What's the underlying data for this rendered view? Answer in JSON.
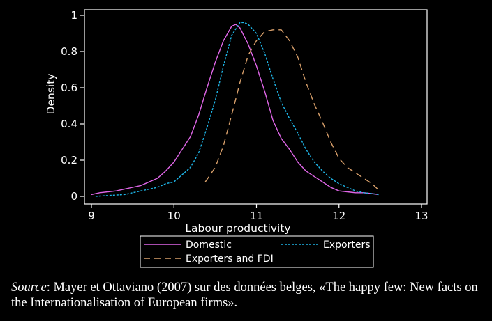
{
  "chart_data": {
    "type": "line",
    "xlabel": "Labour productivity",
    "ylabel": "Density",
    "xlim": [
      9,
      13
    ],
    "ylim": [
      0,
      1
    ],
    "xticks": [
      "9",
      "10",
      "11",
      "12",
      "13"
    ],
    "yticks": [
      "0",
      "0.2",
      "0.4",
      "0.6",
      "0.8",
      "1"
    ],
    "grid": false,
    "legend_position": "bottom",
    "series": [
      {
        "name": "Domestic",
        "color": "#e066e8",
        "dash": "solid",
        "x": [
          9.0,
          9.1,
          9.2,
          9.3,
          9.4,
          9.5,
          9.6,
          9.7,
          9.8,
          9.9,
          10.0,
          10.1,
          10.2,
          10.3,
          10.4,
          10.5,
          10.6,
          10.7,
          10.75,
          10.8,
          10.9,
          11.0,
          11.1,
          11.2,
          11.3,
          11.4,
          11.5,
          11.6,
          11.7,
          11.8,
          11.9,
          12.0,
          12.1,
          12.2,
          12.3,
          12.4,
          12.48
        ],
        "y": [
          0.01,
          0.02,
          0.025,
          0.03,
          0.04,
          0.05,
          0.06,
          0.08,
          0.1,
          0.14,
          0.19,
          0.26,
          0.33,
          0.45,
          0.6,
          0.74,
          0.86,
          0.94,
          0.95,
          0.93,
          0.84,
          0.72,
          0.58,
          0.42,
          0.32,
          0.26,
          0.19,
          0.14,
          0.11,
          0.08,
          0.05,
          0.03,
          0.025,
          0.02,
          0.02,
          0.015,
          0.01
        ]
      },
      {
        "name": "Exporters",
        "color": "#1fb6e8",
        "dash": "short-dash",
        "x": [
          9.05,
          9.2,
          9.4,
          9.6,
          9.8,
          9.9,
          10.0,
          10.1,
          10.2,
          10.3,
          10.4,
          10.5,
          10.6,
          10.7,
          10.8,
          10.85,
          10.9,
          11.0,
          11.1,
          11.2,
          11.3,
          11.4,
          11.5,
          11.6,
          11.7,
          11.8,
          11.9,
          12.0,
          12.1,
          12.2,
          12.3,
          12.4,
          12.48
        ],
        "y": [
          0.0,
          0.005,
          0.01,
          0.03,
          0.05,
          0.07,
          0.08,
          0.12,
          0.16,
          0.24,
          0.38,
          0.53,
          0.72,
          0.89,
          0.96,
          0.96,
          0.95,
          0.9,
          0.79,
          0.65,
          0.52,
          0.43,
          0.35,
          0.26,
          0.19,
          0.14,
          0.1,
          0.07,
          0.05,
          0.03,
          0.02,
          0.015,
          0.01
        ]
      },
      {
        "name": "Exporters and FDI",
        "color": "#d9a06b",
        "dash": "long-dash",
        "x": [
          10.38,
          10.5,
          10.6,
          10.7,
          10.8,
          10.9,
          11.0,
          11.1,
          11.2,
          11.3,
          11.4,
          11.5,
          11.6,
          11.7,
          11.8,
          11.9,
          12.0,
          12.1,
          12.2,
          12.3,
          12.4,
          12.47
        ],
        "y": [
          0.08,
          0.16,
          0.28,
          0.45,
          0.63,
          0.78,
          0.86,
          0.91,
          0.92,
          0.92,
          0.86,
          0.77,
          0.63,
          0.51,
          0.41,
          0.3,
          0.21,
          0.16,
          0.13,
          0.1,
          0.07,
          0.04
        ]
      }
    ]
  },
  "source": {
    "label": "Source",
    "text": ": Mayer et Ottaviano  (2007) sur des données belges, «The happy few: New facts on the Internationalisation of  European firms»."
  }
}
